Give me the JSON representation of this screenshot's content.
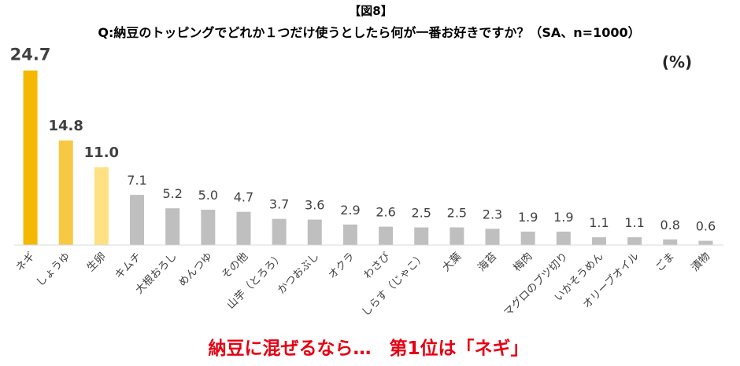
{
  "header": {
    "figure_label": "【図8】"
  },
  "chart_data": {
    "type": "bar",
    "title": "Q:納豆のトッピングでどれか１つだけ使うとしたら何が一番お好きですか？（SA、n=1000）",
    "unit": "(%)",
    "categories": [
      "ネギ",
      "しょうゆ",
      "生卵",
      "キムチ",
      "大根おろし",
      "めんつゆ",
      "その他",
      "山芋（とろろ）",
      "かつおぶし",
      "オクラ",
      "わさび",
      "しらす（じゃこ）",
      "大葉",
      "海苔",
      "梅肉",
      "マグロのブツ切り",
      "いかそうめん",
      "オリーブオイル",
      "ごま",
      "漬物"
    ],
    "values": [
      24.7,
      14.8,
      11.0,
      7.1,
      5.2,
      5.0,
      4.7,
      3.7,
      3.6,
      2.9,
      2.6,
      2.5,
      2.5,
      2.3,
      1.9,
      1.9,
      1.1,
      1.1,
      0.8,
      0.6
    ],
    "ylim": [
      0,
      30
    ],
    "grid": false,
    "bar_colors": [
      "#F5B800",
      "#F9C843",
      "#FFE184",
      "#BFBFBF",
      "#BFBFBF",
      "#BFBFBF",
      "#BFBFBF",
      "#BFBFBF",
      "#BFBFBF",
      "#BFBFBF",
      "#BFBFBF",
      "#BFBFBF",
      "#BFBFBF",
      "#BFBFBF",
      "#BFBFBF",
      "#BFBFBF",
      "#BFBFBF",
      "#BFBFBF",
      "#BFBFBF",
      "#BFBFBF"
    ]
  },
  "footer": {
    "headline": "納豆に混ぜるなら…　第1位は「ネギ」"
  },
  "colors": {
    "axis_line": "#D9D9D9",
    "headline": "#E60012"
  }
}
